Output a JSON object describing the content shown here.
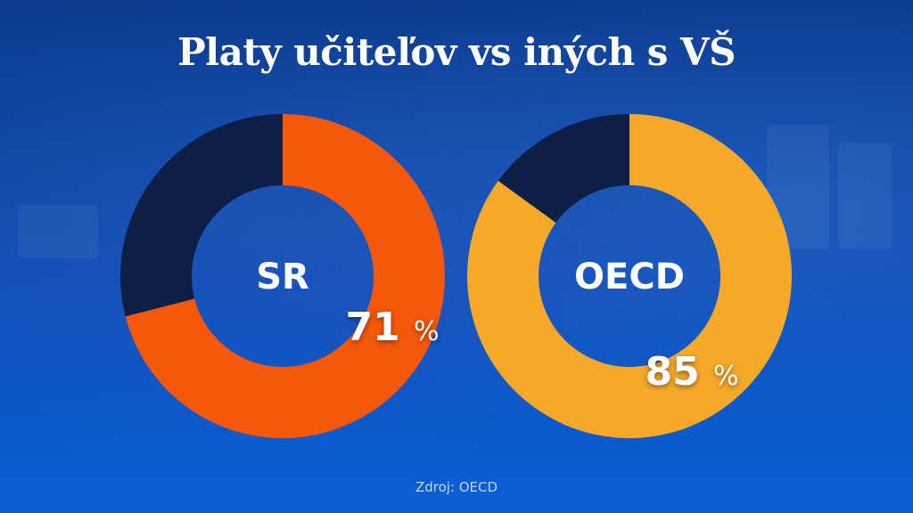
{
  "title": "Platy učiteľov vs iných s VŠ",
  "source": "Zdroj: OECD",
  "colors": {
    "remainder": "#0d1f45",
    "sr": "#f5570b",
    "oecd": "#f5a82a",
    "text": "#ffffff"
  },
  "chart_data": [
    {
      "type": "pie",
      "label": "SR",
      "value": 71,
      "remainder": 29,
      "value_label": "71",
      "unit": "%"
    },
    {
      "type": "pie",
      "label": "OECD",
      "value": 85,
      "remainder": 15,
      "value_label": "85",
      "unit": "%"
    }
  ]
}
